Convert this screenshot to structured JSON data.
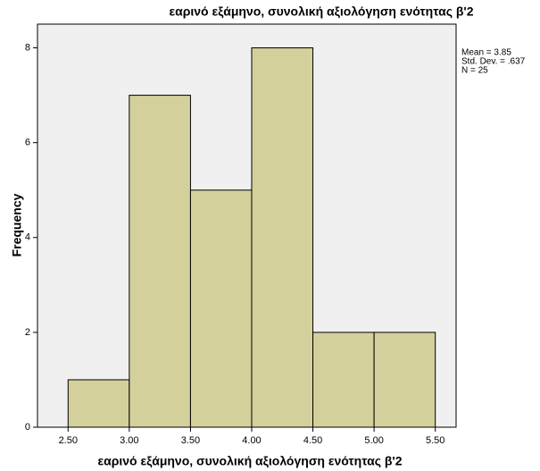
{
  "chart_data": {
    "type": "histogram",
    "title": "εαρινό εξάμηνο, συνολική αξιολόγηση ενότητας β'2",
    "x_label": "εαρινό εξάμηνο, συνολική αξιολόγηση ενότητας β'2",
    "y_label": "Frequency",
    "bins": [
      2.5,
      3.0,
      3.5,
      4.0,
      4.5,
      5.0,
      5.5
    ],
    "values": [
      1,
      7,
      5,
      8,
      2,
      2
    ],
    "color": "#d4d09c",
    "xlim": [
      2.25,
      5.67
    ],
    "ylim": [
      0,
      8.5
    ],
    "xticks": [
      {
        "value": 2.5,
        "label": "2.50"
      },
      {
        "value": 3.0,
        "label": "3.00"
      },
      {
        "value": 3.5,
        "label": "3.50"
      },
      {
        "value": 4.0,
        "label": "4.00"
      },
      {
        "value": 4.5,
        "label": "4.50"
      },
      {
        "value": 5.0,
        "label": "5.00"
      },
      {
        "value": 5.5,
        "label": "5.50"
      }
    ],
    "yticks": [
      0,
      2,
      4,
      6,
      8
    ],
    "stats": [
      "Mean = 3.85",
      "Std. Dev. = .637",
      "N = 25"
    ]
  }
}
